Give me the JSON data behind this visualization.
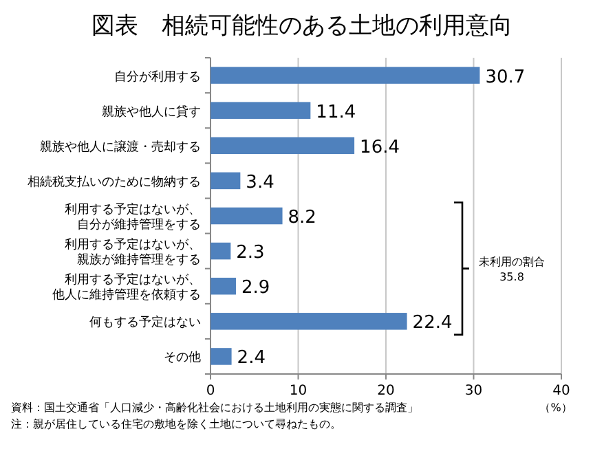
{
  "chart_data": {
    "type": "bar",
    "orientation": "horizontal",
    "title": "図表　相続可能性のある土地の利用意向",
    "categories": [
      "自分が利用する",
      "親族や他人に貸す",
      "親族や他人に譲渡・売却する",
      "相続税支払いのために物納する",
      "利用する予定はないが、自分が維持管理をする",
      "利用する予定はないが、親族が維持管理をする",
      "利用する予定はないが、他人に維持管理を依頼する",
      "何もする予定はない",
      "その他"
    ],
    "values": [
      30.7,
      11.4,
      16.4,
      3.4,
      8.2,
      2.3,
      2.9,
      22.4,
      2.4
    ],
    "color": "#4f81bd",
    "xlim": [
      0,
      40
    ],
    "xticks": [
      0,
      10,
      20,
      30,
      40
    ],
    "xlabel": "（%）",
    "grid": "x",
    "data_labels": true,
    "annotations": [
      "未利用の割合\n35.8",
      "資料：国土交通省「人口減少・高齢化社会における土地利用の実態に関する調査」",
      "注：親が居住している住宅の敷地を除く土地について尋ねたもの。"
    ]
  }
}
